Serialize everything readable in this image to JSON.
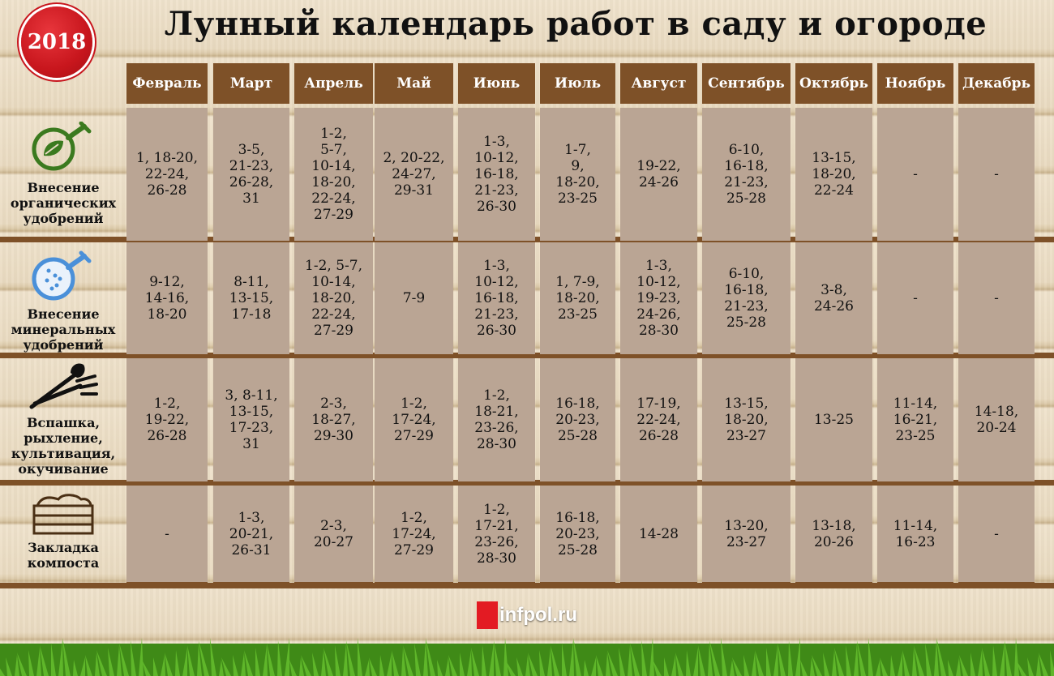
{
  "year": "2018",
  "title": "Лунный календарь работ в саду и огороде",
  "months": [
    "Февраль",
    "Март",
    "Апрель",
    "Май",
    "Июнь",
    "Июль",
    "Август",
    "Сентябрь",
    "Октябрь",
    "Ноябрь",
    "Декабрь"
  ],
  "rows": [
    {
      "label": "Внесение\nорганических\nудобрений",
      "icon": "organic-fertilizer-flask-icon",
      "cells": [
        "1, 18-20,\n22-24,\n26-28",
        "3-5,\n21-23,\n26-28,\n31",
        "1-2,\n5-7,\n10-14,\n18-20,\n22-24,\n27-29",
        "2, 20-22,\n24-27,\n29-31",
        "1-3,\n10-12,\n16-18,\n21-23,\n26-30",
        "1-7,\n9,\n18-20,\n23-25",
        "19-22,\n24-26",
        "6-10,\n16-18,\n21-23,\n25-28",
        "13-15,\n18-20,\n22-24",
        "-",
        "-"
      ]
    },
    {
      "label": "Внесение\nминеральных\nудобрений",
      "icon": "mineral-fertilizer-flask-icon",
      "cells": [
        "9-12,\n14-16,\n18-20",
        "8-11,\n13-15,\n17-18",
        "1-2, 5-7,\n10-14,\n18-20,\n22-24,\n27-29",
        "7-9",
        "1-3,\n10-12,\n16-18,\n21-23,\n26-30",
        "1, 7-9,\n18-20,\n23-25",
        "1-3,\n10-12,\n19-23,\n24-26,\n28-30",
        "6-10,\n16-18,\n21-23,\n25-28",
        "3-8,\n24-26",
        "-",
        "-"
      ]
    },
    {
      "label": "Вспашка,\nрыхление,\nкультивация,\nокучивание",
      "icon": "shovel-fork-icon",
      "cells": [
        "1-2,\n19-22,\n26-28",
        "3, 8-11,\n13-15,\n17-23,\n31",
        "2-3,\n18-27,\n29-30",
        "1-2,\n17-24,\n27-29",
        "1-2,\n18-21,\n23-26,\n28-30",
        "16-18,\n20-23,\n25-28",
        "17-19,\n22-24,\n26-28",
        "13-15,\n18-20,\n23-27",
        "13-25",
        "11-14,\n16-21,\n23-25",
        "14-18,\n20-24"
      ]
    },
    {
      "label": "Закладка\nкомпоста",
      "icon": "compost-box-icon",
      "cells": [
        "-",
        "1-3,\n20-21,\n26-31",
        "2-3,\n20-27",
        "1-2,\n17-24,\n27-29",
        "1-2,\n17-21,\n23-26,\n28-30",
        "16-18,\n20-23,\n25-28",
        "14-28",
        "13-20,\n23-27",
        "13-18,\n20-26",
        "11-14,\n16-23",
        "-"
      ]
    }
  ],
  "logo": {
    "text": "infpol.ru",
    "color": "#e31b23"
  },
  "colors": {
    "header": "#7e5128",
    "cell": "#baa594",
    "badge": "#c8161d"
  }
}
